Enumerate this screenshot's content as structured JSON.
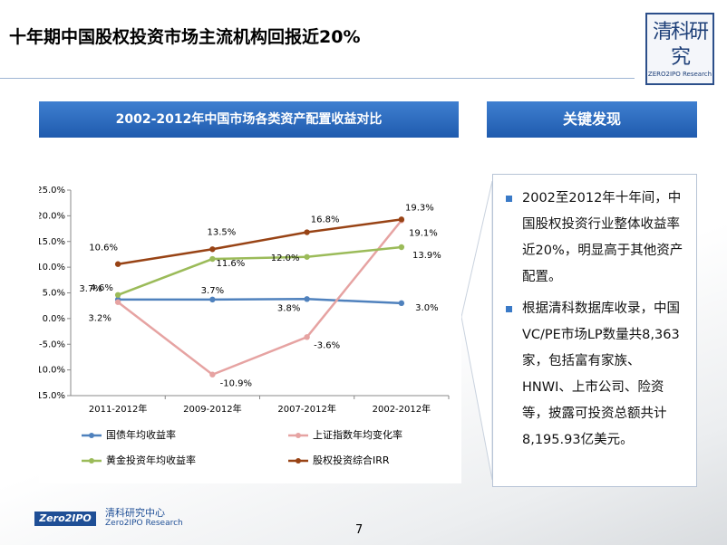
{
  "slide": {
    "title": "十年期中国股权投资市场主流机构回报近20%",
    "logo_main": "清科研究",
    "logo_sub": "ZERO2IPO Research",
    "left_header": "2002-2012年中国市场各类资产配置收益对比",
    "right_header": "关键发现",
    "findings": [
      "2002至2012年十年间，中国股权投资行业整体收益率近20%，明显高于其他资产配置。",
      "根据清科数据库收录，中国VC/PE市场LP数量共8,363家，包括富有家族、HNWI、上市公司、险资等，披露可投资总额共计8,195.93亿美元。"
    ],
    "footer_brand": "Zero2IPO",
    "footer_cn": "清科研究中心",
    "footer_en": "Zero2IPO Research",
    "page_number": "7"
  },
  "chart_data": {
    "type": "line",
    "categories": [
      "2011-2012年",
      "2009-2012年",
      "2007-2012年",
      "2002-2012年"
    ],
    "series": [
      {
        "name": "国债年均收益率",
        "color": "#4f81bd",
        "values": [
          3.7,
          3.7,
          3.8,
          3.0
        ],
        "value_labels": [
          "3.7%",
          "3.7%",
          "3.8%",
          "3.0%"
        ]
      },
      {
        "name": "上证指数年均变化率",
        "color": "#e6a3a2",
        "values": [
          3.2,
          -10.9,
          -3.6,
          19.1
        ],
        "value_labels": [
          "3.2%",
          "-10.9%",
          "-3.6%",
          "19.1%"
        ]
      },
      {
        "name": "黄金投资年均收益率",
        "color": "#9bbb59",
        "values": [
          4.6,
          11.6,
          12.0,
          13.9
        ],
        "value_labels": [
          "4.6%",
          "11.6%",
          "12.0%",
          "13.9%"
        ]
      },
      {
        "name": "股权投资综合IRR",
        "color": "#984315",
        "values": [
          10.6,
          13.5,
          16.8,
          19.3
        ],
        "value_labels": [
          "10.6%",
          "13.5%",
          "16.8%",
          "19.3%"
        ]
      }
    ],
    "ylim": [
      -15,
      25
    ],
    "yticks": [
      {
        "value": -15,
        "label": "-15.0%"
      },
      {
        "value": -10,
        "label": "-10.0%"
      },
      {
        "value": -5,
        "label": "-5.0%"
      },
      {
        "value": 0,
        "label": "0.0%"
      },
      {
        "value": 5,
        "label": "5.0%"
      },
      {
        "value": 10,
        "label": "10.0%"
      },
      {
        "value": 15,
        "label": "15.0%"
      },
      {
        "value": 20,
        "label": "20.0%"
      },
      {
        "value": 25,
        "label": "25.0%"
      }
    ]
  }
}
